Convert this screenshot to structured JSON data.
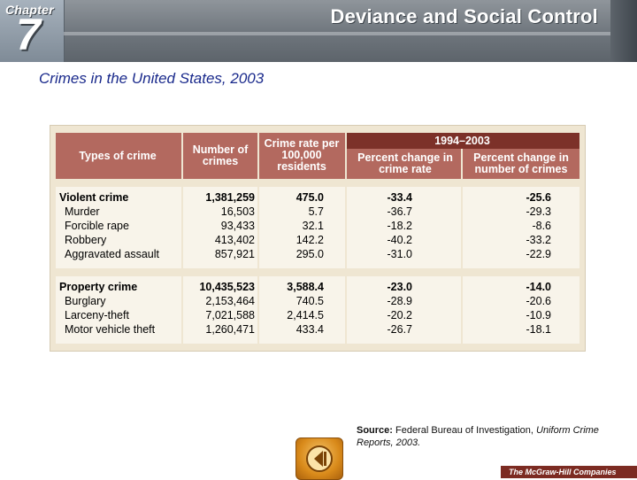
{
  "header": {
    "chapter_word": "Chapter",
    "chapter_number": "7",
    "title": "Deviance and Social Control"
  },
  "slide_title": "Crimes in the United States, 2003",
  "table": {
    "headers": {
      "type": "Types of crime",
      "number": "Number of crimes",
      "rate": "Crime rate per 100,000 residents",
      "period": "1994–2003",
      "pct_rate": "Percent change in crime rate",
      "pct_number": "Percent change in number of crimes"
    },
    "violent": [
      {
        "type": "Violent crime",
        "number": "1,381,259",
        "rate": "475.0",
        "pct_rate": "-33.4",
        "pct_number": "-25.6"
      },
      {
        "type": "Murder",
        "number": "16,503",
        "rate": "5.7",
        "pct_rate": "-36.7",
        "pct_number": "-29.3"
      },
      {
        "type": "Forcible rape",
        "number": "93,433",
        "rate": "32.1",
        "pct_rate": "-18.2",
        "pct_number": "-8.6"
      },
      {
        "type": "Robbery",
        "number": "413,402",
        "rate": "142.2",
        "pct_rate": "-40.2",
        "pct_number": "-33.2"
      },
      {
        "type": "Aggravated assault",
        "number": "857,921",
        "rate": "295.0",
        "pct_rate": "-31.0",
        "pct_number": "-22.9"
      }
    ],
    "property": [
      {
        "type": "Property crime",
        "number": "10,435,523",
        "rate": "3,588.4",
        "pct_rate": "-23.0",
        "pct_number": "-14.0"
      },
      {
        "type": "Burglary",
        "number": "2,153,464",
        "rate": "740.5",
        "pct_rate": "-28.9",
        "pct_number": "-20.6"
      },
      {
        "type": "Larceny-theft",
        "number": "7,021,588",
        "rate": "2,414.5",
        "pct_rate": "-20.2",
        "pct_number": "-10.9"
      },
      {
        "type": "Motor vehicle theft",
        "number": "1,260,471",
        "rate": "433.4",
        "pct_rate": "-26.7",
        "pct_number": "-18.1"
      }
    ]
  },
  "source": {
    "label": "Source:",
    "text": "Federal Bureau of Investigation,",
    "italic": "Uniform Crime Reports, 2003."
  },
  "footer": {
    "logo": "The McGraw-Hill Companies"
  },
  "colors": {
    "header_gray": "#6e757c",
    "title_blue": "#1a2a8c",
    "table_header": "#b3695f",
    "period_header": "#7c3129",
    "panel_bg": "#efe6d2",
    "row_bg": "#f8f4ea"
  },
  "icons": {
    "back_button": "back-arrow-icon"
  }
}
